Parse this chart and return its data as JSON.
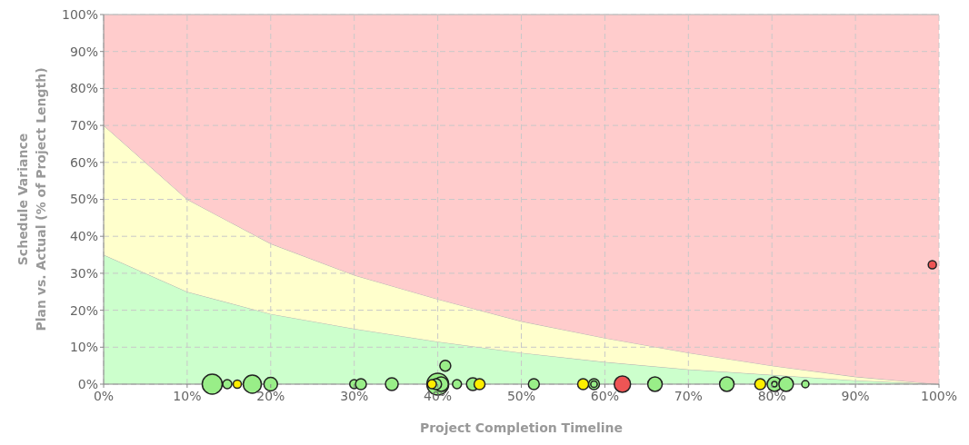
{
  "chart_data": {
    "type": "bubble",
    "xlabel": "Project Completion Timeline",
    "ylabel": "Schedule Variance\nPlan vs. Actual (% of Project Length)",
    "xlim": [
      0,
      100
    ],
    "ylim": [
      0,
      100
    ],
    "xticks": [
      {
        "value": 0,
        "label": "0%"
      },
      {
        "value": 10,
        "label": "10%"
      },
      {
        "value": 20,
        "label": "20%"
      },
      {
        "value": 30,
        "label": "30%"
      },
      {
        "value": 40,
        "label": "40%"
      },
      {
        "value": 50,
        "label": "50%"
      },
      {
        "value": 60,
        "label": "60%"
      },
      {
        "value": 70,
        "label": "70%"
      },
      {
        "value": 80,
        "label": "80%"
      },
      {
        "value": 90,
        "label": "90%"
      },
      {
        "value": 100,
        "label": "100%"
      }
    ],
    "yticks": [
      {
        "value": 0,
        "label": "0%"
      },
      {
        "value": 10,
        "label": "10%"
      },
      {
        "value": 20,
        "label": "20%"
      },
      {
        "value": 30,
        "label": "30%"
      },
      {
        "value": 40,
        "label": "40%"
      },
      {
        "value": 50,
        "label": "50%"
      },
      {
        "value": 60,
        "label": "60%"
      },
      {
        "value": 70,
        "label": "70%"
      },
      {
        "value": 80,
        "label": "80%"
      },
      {
        "value": 90,
        "label": "90%"
      },
      {
        "value": 100,
        "label": "100%"
      }
    ],
    "grid": true,
    "line_style": "dashed",
    "stacked": true,
    "series": [
      {
        "type": "area",
        "color": "#ccffcc",
        "x": [
          0,
          10,
          20,
          30,
          40,
          50,
          60,
          70,
          80,
          90,
          100
        ],
        "values": [
          35,
          25,
          19,
          15,
          11.5,
          8.5,
          6,
          4,
          2.5,
          1,
          0
        ]
      },
      {
        "type": "area",
        "color": "#ffffcc",
        "x": [
          0,
          10,
          20,
          30,
          40,
          50,
          60,
          70,
          80,
          90,
          100
        ],
        "values": [
          35,
          25,
          19,
          14.5,
          11.5,
          8.5,
          6.5,
          4.5,
          2.5,
          1,
          0
        ]
      },
      {
        "type": "area",
        "color": "#ffcccc",
        "x": [
          0,
          10,
          20,
          30,
          40,
          50,
          60,
          70,
          80,
          90,
          100
        ],
        "values": [
          30,
          50,
          62,
          70.5,
          77,
          83,
          87.5,
          91.5,
          95,
          98,
          100
        ]
      },
      {
        "marker": "circle",
        "color": "#99ee88",
        "x": [
          13.0,
          14.8,
          17.8,
          20.0,
          30.0,
          30.8,
          34.5,
          40.9,
          40.0,
          40.4,
          39.8,
          42.3,
          44.2,
          51.5,
          58.7,
          58.7,
          66.0,
          74.6,
          80.3,
          80.3,
          81.7,
          84.0
        ],
        "values": [
          0,
          0,
          0,
          0,
          0,
          0,
          0,
          5,
          0,
          0,
          0,
          0,
          0,
          0,
          0,
          0,
          0,
          0,
          0,
          0,
          0,
          0
        ],
        "sizes": [
          0.84,
          0.17,
          0.69,
          0.39,
          0.17,
          0.25,
          0.34,
          0.25,
          1,
          0.44,
          0.25,
          0.17,
          0.34,
          0.25,
          0.25,
          0.09,
          0.44,
          0.44,
          0.44,
          0.06,
          0.44,
          0.11
        ]
      },
      {
        "marker": "circle",
        "color": "#ffee00",
        "x": [
          16.0,
          39.3,
          45.0,
          57.4,
          78.6
        ],
        "values": [
          0,
          0,
          0,
          0,
          0
        ],
        "sizes": [
          0.14,
          0.17,
          0.25,
          0.25,
          0.25
        ]
      },
      {
        "marker": "circle",
        "color": "#ee5555",
        "x": [
          62.1,
          99.2
        ],
        "values": [
          0,
          32.3
        ],
        "sizes": [
          0.56,
          0.14
        ]
      }
    ]
  }
}
